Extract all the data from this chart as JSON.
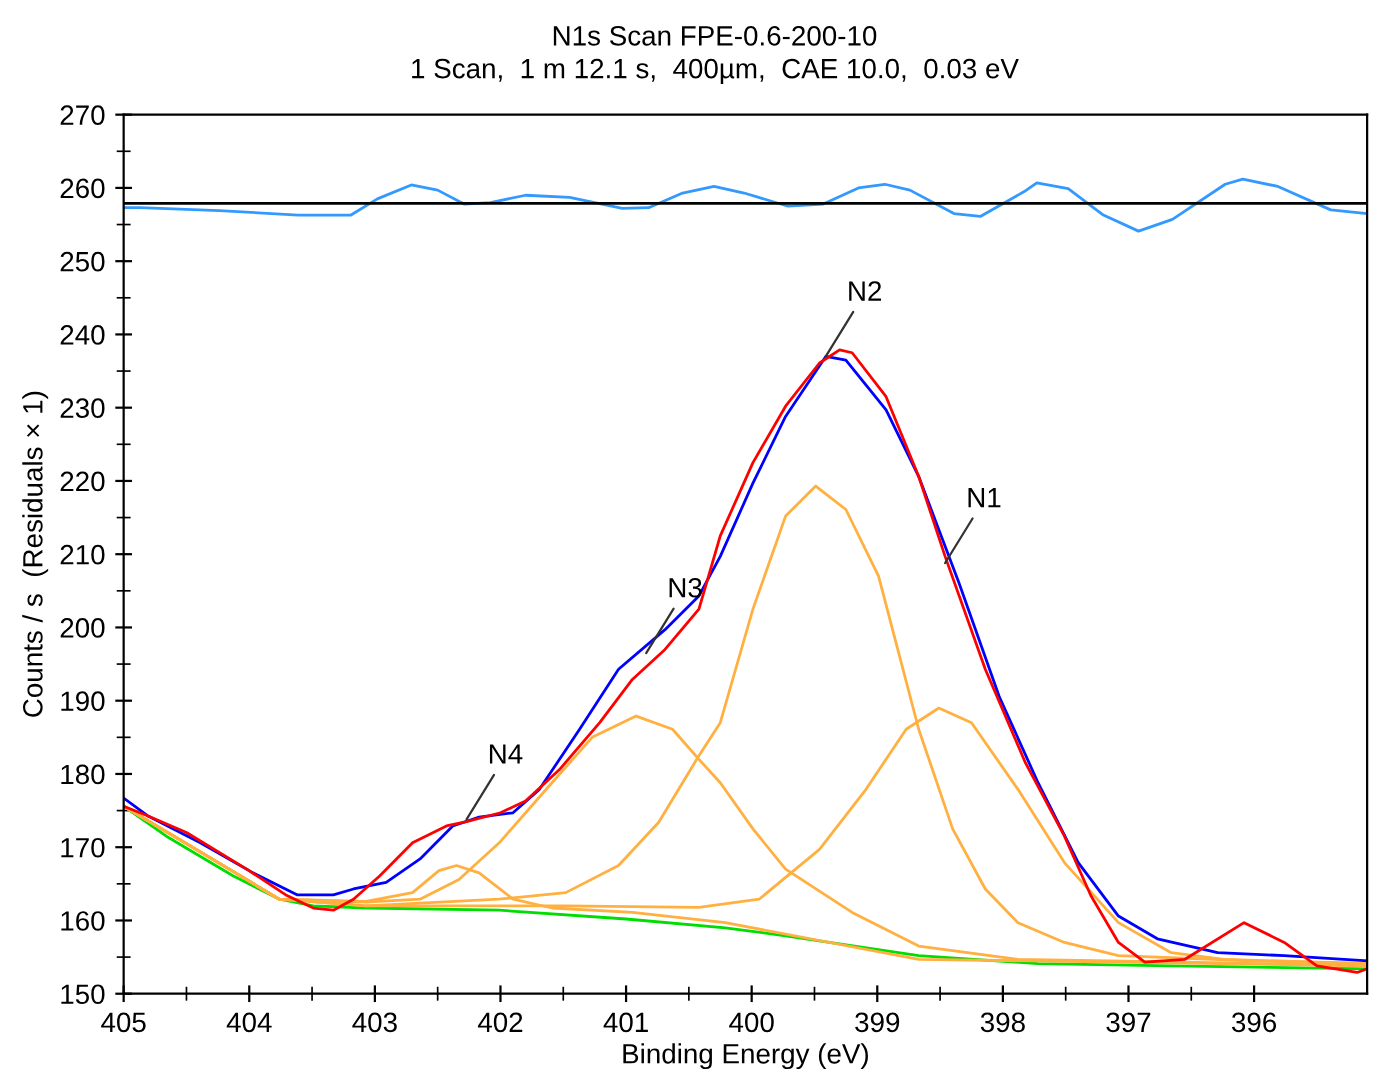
{
  "chart_data": {
    "type": "line",
    "title": "N1s Scan FPE-0.6-200-10",
    "subtitle": "1 Scan,  1 m 12.1 s,  400µm,  CAE 10.0,  0.03 eV",
    "xlabel": "Binding Energy (eV)",
    "ylabel": "Counts / s  (Residuals × 1)",
    "xlim": [
      405,
      395.1
    ],
    "ylim": [
      150,
      270
    ],
    "xticks": [
      405,
      404,
      403,
      402,
      401,
      400,
      399,
      398,
      397,
      396
    ],
    "yticks": [
      150,
      160,
      170,
      180,
      190,
      200,
      210,
      220,
      230,
      240,
      250,
      260,
      270
    ],
    "ref_lines": [
      {
        "axis": "y",
        "value": 257.9,
        "color": "#000000"
      }
    ],
    "series": [
      {
        "color": "#3399ff",
        "x": [
          405.0,
          404.87,
          404.24,
          403.61,
          403.19,
          402.98,
          402.71,
          402.5,
          402.29,
          402.08,
          401.8,
          401.45,
          401.03,
          400.82,
          400.55,
          400.3,
          400.06,
          399.71,
          399.43,
          399.15,
          398.94,
          398.74,
          398.39,
          398.18,
          397.83,
          397.73,
          397.48,
          397.2,
          396.92,
          396.65,
          396.23,
          396.09,
          395.81,
          395.39,
          395.11
        ],
        "values": [
          257.3,
          257.3,
          256.9,
          256.3,
          256.3,
          258.5,
          260.4,
          259.7,
          257.8,
          258.0,
          259.0,
          258.7,
          257.2,
          257.3,
          259.3,
          260.2,
          259.3,
          257.5,
          257.8,
          260.0,
          260.5,
          259.7,
          256.5,
          256.1,
          259.5,
          260.7,
          259.9,
          256.3,
          254.1,
          255.7,
          260.5,
          261.2,
          260.2,
          257.0,
          256.5
        ]
      },
      {
        "color": "#00dd00",
        "x": [
          405.0,
          404.66,
          404.13,
          403.76,
          403.49,
          403.07,
          402.01,
          401.0,
          400.21,
          399.73,
          398.67,
          397.72,
          396.66,
          395.1
        ],
        "values": [
          175.6,
          171.5,
          166.1,
          162.9,
          162.0,
          161.7,
          161.4,
          160.2,
          159.0,
          157.9,
          155.2,
          154.1,
          153.8,
          153.4
        ]
      },
      {
        "color": "#ffb040",
        "x": [
          405.0,
          403.76,
          403.07,
          402.7,
          402.49,
          402.35,
          402.17,
          401.9,
          401.59,
          400.95,
          400.21,
          398.67,
          395.1
        ],
        "values": [
          175.6,
          162.9,
          162.6,
          163.8,
          166.8,
          167.5,
          166.5,
          162.9,
          161.7,
          161.1,
          159.7,
          154.7,
          153.8
        ]
      },
      {
        "color": "#ffb040",
        "x": [
          405.0,
          403.76,
          403.07,
          402.64,
          402.33,
          402.01,
          401.59,
          401.27,
          400.92,
          400.63,
          400.42,
          400.25,
          399.99,
          399.73,
          399.2,
          398.67,
          397.88,
          396.55,
          395.1
        ],
        "values": [
          175.6,
          162.9,
          162.5,
          162.9,
          165.6,
          170.6,
          178.8,
          185.0,
          187.9,
          186.1,
          182.0,
          178.8,
          172.5,
          167.0,
          161.1,
          156.5,
          154.7,
          154.3,
          153.8
        ]
      },
      {
        "color": "#ffb040",
        "x": [
          405.0,
          403.76,
          403.07,
          402.01,
          401.48,
          401.06,
          400.74,
          400.42,
          400.25,
          399.99,
          399.73,
          399.49,
          399.25,
          398.99,
          398.67,
          398.4,
          398.14,
          397.88,
          397.51,
          397.08,
          396.03,
          395.1
        ],
        "values": [
          175.6,
          162.9,
          162.0,
          162.9,
          163.8,
          167.5,
          173.4,
          182.5,
          187.0,
          202.5,
          215.2,
          219.3,
          216.1,
          207.0,
          186.1,
          172.5,
          164.3,
          159.7,
          157.0,
          155.2,
          154.5,
          154.1
        ]
      },
      {
        "color": "#ffb040",
        "x": [
          405.0,
          403.76,
          403.07,
          401.48,
          400.42,
          399.94,
          399.46,
          399.09,
          398.77,
          398.51,
          398.25,
          397.88,
          397.51,
          397.08,
          396.66,
          396.24,
          395.1
        ],
        "values": [
          175.6,
          162.9,
          162.0,
          162.0,
          161.8,
          162.9,
          169.7,
          177.9,
          186.1,
          189.0,
          187.0,
          177.9,
          167.9,
          159.7,
          155.6,
          154.7,
          154.1
        ]
      },
      {
        "color": "#0000ff",
        "x": [
          405.0,
          404.81,
          404.39,
          403.97,
          403.62,
          403.33,
          403.17,
          402.91,
          402.64,
          402.38,
          402.17,
          401.9,
          401.69,
          401.37,
          401.06,
          400.69,
          400.42,
          400.25,
          399.99,
          399.73,
          399.41,
          399.25,
          398.93,
          398.67,
          398.35,
          398.03,
          397.72,
          397.4,
          397.08,
          396.77,
          396.29,
          395.76,
          395.1
        ],
        "values": [
          176.7,
          174.3,
          170.6,
          166.5,
          163.5,
          163.5,
          164.3,
          165.2,
          168.4,
          172.9,
          174.1,
          174.7,
          177.9,
          186.1,
          194.3,
          199.7,
          204.3,
          209.7,
          219.7,
          228.8,
          237.0,
          236.5,
          229.7,
          220.6,
          206.1,
          190.6,
          178.8,
          167.9,
          160.6,
          157.5,
          155.6,
          155.2,
          154.5
        ]
      },
      {
        "color": "#ff0000",
        "x": [
          405.0,
          404.81,
          404.5,
          404.02,
          403.7,
          403.49,
          403.33,
          403.17,
          402.96,
          402.7,
          402.43,
          402.27,
          402.0,
          401.8,
          401.53,
          401.21,
          400.95,
          400.69,
          400.42,
          400.25,
          399.99,
          399.73,
          399.46,
          399.3,
          399.2,
          398.93,
          398.67,
          398.46,
          398.14,
          397.82,
          397.51,
          397.3,
          397.08,
          396.87,
          396.55,
          396.08,
          395.76,
          395.5,
          395.18,
          395.1
        ],
        "values": [
          175.6,
          174.3,
          172.0,
          167.0,
          163.4,
          161.7,
          161.4,
          162.9,
          166.1,
          170.6,
          172.9,
          173.5,
          174.7,
          176.3,
          180.6,
          187.0,
          192.9,
          197.0,
          202.5,
          212.5,
          222.5,
          230.2,
          236.1,
          237.9,
          237.5,
          231.5,
          220.6,
          209.7,
          194.3,
          181.5,
          171.5,
          163.4,
          157.0,
          154.3,
          154.7,
          159.7,
          157.0,
          153.8,
          152.9,
          153.4
        ]
      }
    ],
    "annotations": [
      {
        "text": "N1",
        "x": 398.46,
        "y": 208.8
      },
      {
        "text": "N2",
        "x": 399.41,
        "y": 237.0
      },
      {
        "text": "N3",
        "x": 400.84,
        "y": 196.5
      },
      {
        "text": "N4",
        "x": 402.27,
        "y": 173.8
      }
    ]
  }
}
